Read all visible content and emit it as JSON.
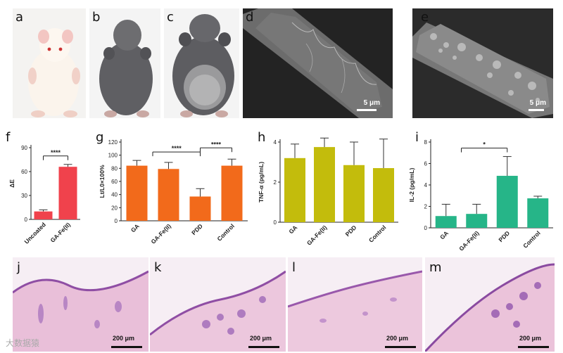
{
  "labels": {
    "a": "a",
    "b": "b",
    "c": "c",
    "d": "d",
    "e": "e",
    "f": "f",
    "g": "g",
    "h": "h",
    "i": "i",
    "j": "j",
    "k": "k",
    "l": "l",
    "m": "m"
  },
  "sem_scale": "5 μm",
  "histo_scale": "200 μm",
  "watermark": "大数据猿",
  "colors": {
    "f": "#f0424c",
    "g": "#f26a1b",
    "h": "#c3bc0c",
    "i": "#26b588"
  },
  "chart_data": [
    {
      "id": "f",
      "type": "bar",
      "categories": [
        "Uncoated",
        "GA-Fe(II)"
      ],
      "values": [
        10,
        66
      ],
      "errors": [
        2,
        3
      ],
      "ylabel": "ΔE",
      "ylim": [
        0,
        90
      ],
      "yticks": [
        0,
        30,
        60,
        90
      ],
      "significance": [
        {
          "from": 0,
          "to": 1,
          "label": "****"
        }
      ]
    },
    {
      "id": "g",
      "type": "bar",
      "categories": [
        "GA",
        "GA-Fe(II)",
        "PDD",
        "Control"
      ],
      "values": [
        84,
        79,
        37,
        84
      ],
      "errors": [
        8,
        10,
        12,
        10
      ],
      "ylabel": "Lt/L0×100%",
      "ylim": [
        0,
        120
      ],
      "yticks": [
        0,
        20,
        40,
        60,
        80,
        100,
        120
      ],
      "significance": [
        {
          "from": 0.5,
          "to": 2,
          "label": "****"
        },
        {
          "from": 2,
          "to": 3,
          "label": "****"
        }
      ]
    },
    {
      "id": "h",
      "type": "bar",
      "categories": [
        "GA",
        "GA-Fe(II)",
        "PDD",
        "Control"
      ],
      "values": [
        3.2,
        3.75,
        2.85,
        2.7
      ],
      "errors": [
        0.7,
        0.45,
        1.15,
        1.45
      ],
      "ylabel": "TNF-α (pg/mL)",
      "ylim": [
        0,
        4
      ],
      "yticks": [
        0,
        2,
        4
      ]
    },
    {
      "id": "i",
      "type": "bar",
      "categories": [
        "GA",
        "GA-Fe(II)",
        "PDD",
        "Control"
      ],
      "values": [
        1.1,
        1.3,
        4.85,
        2.75
      ],
      "errors": [
        1.1,
        0.9,
        1.8,
        0.2
      ],
      "ylabel": "IL-2 (pg/mL)",
      "ylim": [
        0,
        8
      ],
      "yticks": [
        0,
        2,
        4,
        6,
        8
      ],
      "significance": [
        {
          "from": 0.5,
          "to": 2,
          "label": "*"
        }
      ]
    }
  ]
}
